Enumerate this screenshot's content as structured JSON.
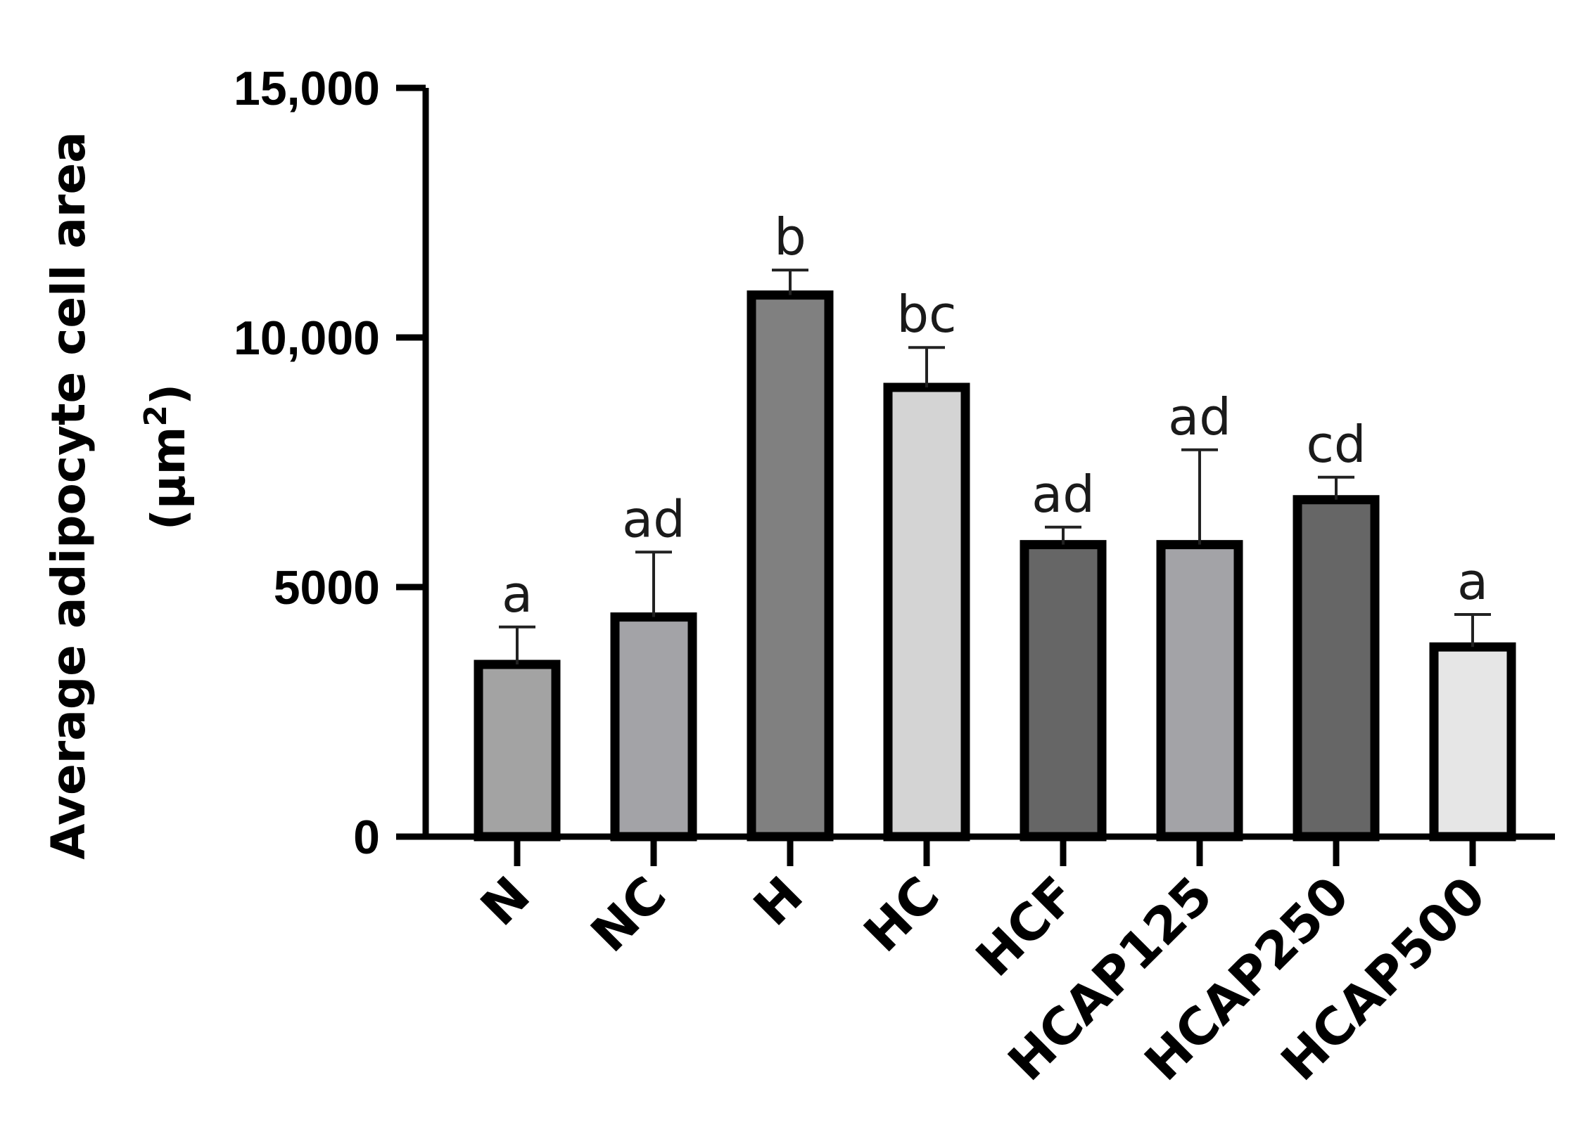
{
  "chart_data": {
    "type": "bar",
    "ylabel": "Average adipocyte cell area",
    "ylabel_unit": "(µm",
    "ylabel_unit_sup": "2",
    "ylabel_unit_close": ")",
    "ylim": [
      0,
      15000
    ],
    "yticks": [
      0,
      5000,
      10000,
      15000
    ],
    "ytick_labels": [
      "0",
      "5000",
      "10,000",
      "15,000"
    ],
    "categories": [
      "N",
      "NC",
      "H",
      "HC",
      "HCF",
      "HCAP125",
      "HCAP250",
      "HCAP500"
    ],
    "values": [
      3450,
      4400,
      10850,
      9000,
      5850,
      5850,
      6750,
      3800
    ],
    "errors": [
      750,
      1300,
      500,
      800,
      350,
      1900,
      450,
      650
    ],
    "significance": [
      "a",
      "ad",
      "b",
      "bc",
      "ad",
      "ad",
      "cd",
      "a"
    ],
    "colors": [
      "#a3a3a3",
      "#a3a3a7",
      "#808080",
      "#d4d4d4",
      "#666666",
      "#a3a3a7",
      "#666666",
      "#e6e6e6"
    ],
    "grid": false,
    "legend": "none"
  }
}
